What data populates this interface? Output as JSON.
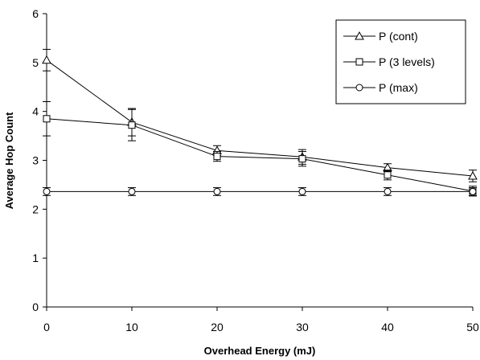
{
  "chart_data": {
    "type": "line",
    "xlabel": "Overhead Energy (mJ)",
    "ylabel": "Average Hop Count",
    "xlim": [
      0,
      50
    ],
    "ylim": [
      0,
      6
    ],
    "x_ticks": [
      "0",
      "10",
      "20",
      "30",
      "40",
      "50"
    ],
    "y_ticks": [
      "0",
      "1",
      "2",
      "3",
      "4",
      "5",
      "6"
    ],
    "grid": false,
    "legend_position": "top-right",
    "x": [
      0,
      10,
      20,
      30,
      40,
      50
    ],
    "series": [
      {
        "name": "P (cont)",
        "marker": "triangle",
        "values": [
          5.05,
          3.78,
          3.2,
          3.07,
          2.85,
          2.68
        ],
        "error": [
          0.22,
          0.28,
          0.1,
          0.15,
          0.08,
          0.12
        ]
      },
      {
        "name": "P (3 levels)",
        "marker": "square",
        "values": [
          3.85,
          3.72,
          3.08,
          3.03,
          2.7,
          2.37
        ],
        "error": [
          0.35,
          0.32,
          0.1,
          0.15,
          0.1,
          0.1
        ]
      },
      {
        "name": "P (max)",
        "marker": "circle",
        "values": [
          2.36,
          2.36,
          2.36,
          2.36,
          2.36,
          2.36
        ],
        "error": [
          0.08,
          0.08,
          0.08,
          0.08,
          0.08,
          0.08
        ]
      }
    ],
    "colors": {
      "line": "#000000",
      "marker_fill": "#ffffff",
      "background": "#ffffff"
    }
  }
}
